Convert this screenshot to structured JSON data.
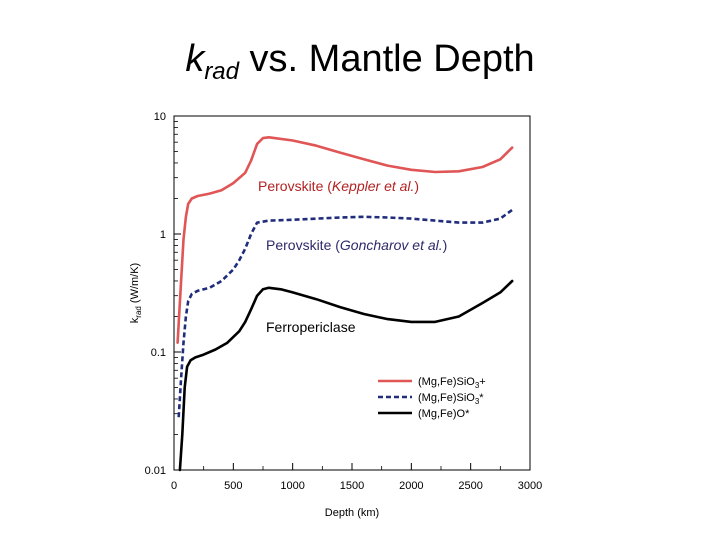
{
  "slide": {
    "title_k": "k",
    "title_sub": "rad",
    "title_rest": " vs. Mantle Depth"
  },
  "chart_data": {
    "type": "line",
    "xlabel": "Depth (km)",
    "ylabel_main": "k",
    "ylabel_sub": "rad",
    "ylabel_unit": " (W/m/K)",
    "xlim": [
      0,
      3000
    ],
    "ylim": [
      0.01,
      10
    ],
    "yscale": "log",
    "x_ticks": [
      0,
      500,
      1000,
      1500,
      2000,
      2500,
      3000
    ],
    "x_tick_labels": [
      "0",
      "500",
      "1000",
      "1500",
      "2000",
      "2500",
      "3000"
    ],
    "y_ticks": [
      0.01,
      0.1,
      1,
      10
    ],
    "y_tick_labels": [
      "0.01",
      "0.1",
      "1",
      "10"
    ],
    "grid": false,
    "legend_position": "bottom-right",
    "series": [
      {
        "name": "(Mg,Fe)SiO3+",
        "legend_main": "(Mg,Fe)SiO",
        "legend_sub": "3",
        "legend_suffix": "+",
        "color": "#e05555",
        "dash": "solid",
        "x": [
          30,
          60,
          80,
          100,
          120,
          150,
          200,
          300,
          400,
          500,
          600,
          650,
          700,
          750,
          800,
          1000,
          1200,
          1400,
          1600,
          1800,
          2000,
          2200,
          2400,
          2600,
          2750,
          2850
        ],
        "y": [
          0.12,
          0.4,
          0.9,
          1.4,
          1.8,
          2.0,
          2.1,
          2.2,
          2.35,
          2.7,
          3.3,
          4.2,
          5.8,
          6.5,
          6.6,
          6.2,
          5.6,
          4.9,
          4.3,
          3.8,
          3.5,
          3.35,
          3.4,
          3.7,
          4.3,
          5.4
        ]
      },
      {
        "name": "(Mg,Fe)SiO3*",
        "legend_main": "(Mg,Fe)SiO",
        "legend_sub": "3",
        "legend_suffix": "*",
        "color": "#1f2d7a",
        "dash": "dashed",
        "x": [
          40,
          60,
          80,
          100,
          120,
          150,
          200,
          300,
          400,
          500,
          550,
          600,
          650,
          700,
          800,
          1000,
          1200,
          1400,
          1600,
          1800,
          2000,
          2200,
          2400,
          2600,
          2750,
          2850
        ],
        "y": [
          0.028,
          0.06,
          0.12,
          0.2,
          0.27,
          0.31,
          0.33,
          0.35,
          0.4,
          0.5,
          0.6,
          0.75,
          1.0,
          1.25,
          1.3,
          1.32,
          1.35,
          1.38,
          1.4,
          1.38,
          1.35,
          1.3,
          1.25,
          1.25,
          1.35,
          1.6
        ]
      },
      {
        "name": "(Mg,Fe)O*",
        "legend_main": "(Mg,Fe)O",
        "legend_sub": "",
        "legend_suffix": "*",
        "color": "#000000",
        "dash": "solid",
        "x": [
          50,
          70,
          90,
          110,
          140,
          180,
          250,
          350,
          450,
          550,
          600,
          650,
          700,
          750,
          800,
          900,
          1000,
          1200,
          1400,
          1600,
          1800,
          2000,
          2200,
          2400,
          2600,
          2750,
          2850
        ],
        "y": [
          0.01,
          0.02,
          0.05,
          0.075,
          0.085,
          0.09,
          0.095,
          0.105,
          0.12,
          0.15,
          0.18,
          0.23,
          0.3,
          0.34,
          0.35,
          0.34,
          0.32,
          0.28,
          0.24,
          0.21,
          0.19,
          0.18,
          0.18,
          0.2,
          0.26,
          0.32,
          0.4
        ]
      }
    ],
    "annotations": [
      {
        "id": "perovskite-keppler",
        "parts": [
          {
            "text": "Perovskite (",
            "italic": false
          },
          {
            "text": "Keppler et al.",
            "italic": true
          },
          {
            "text": ")",
            "italic": false
          }
        ],
        "color": "#b22222"
      },
      {
        "id": "perovskite-goncharov",
        "parts": [
          {
            "text": "Perovskite (",
            "italic": false
          },
          {
            "text": "Goncharov et al.",
            "italic": true
          },
          {
            "text": ")",
            "italic": false
          }
        ],
        "color": "#2e2a6b"
      },
      {
        "id": "ferropericlase",
        "parts": [
          {
            "text": "Ferropericlase",
            "italic": false
          }
        ],
        "color": "#000000"
      }
    ]
  }
}
